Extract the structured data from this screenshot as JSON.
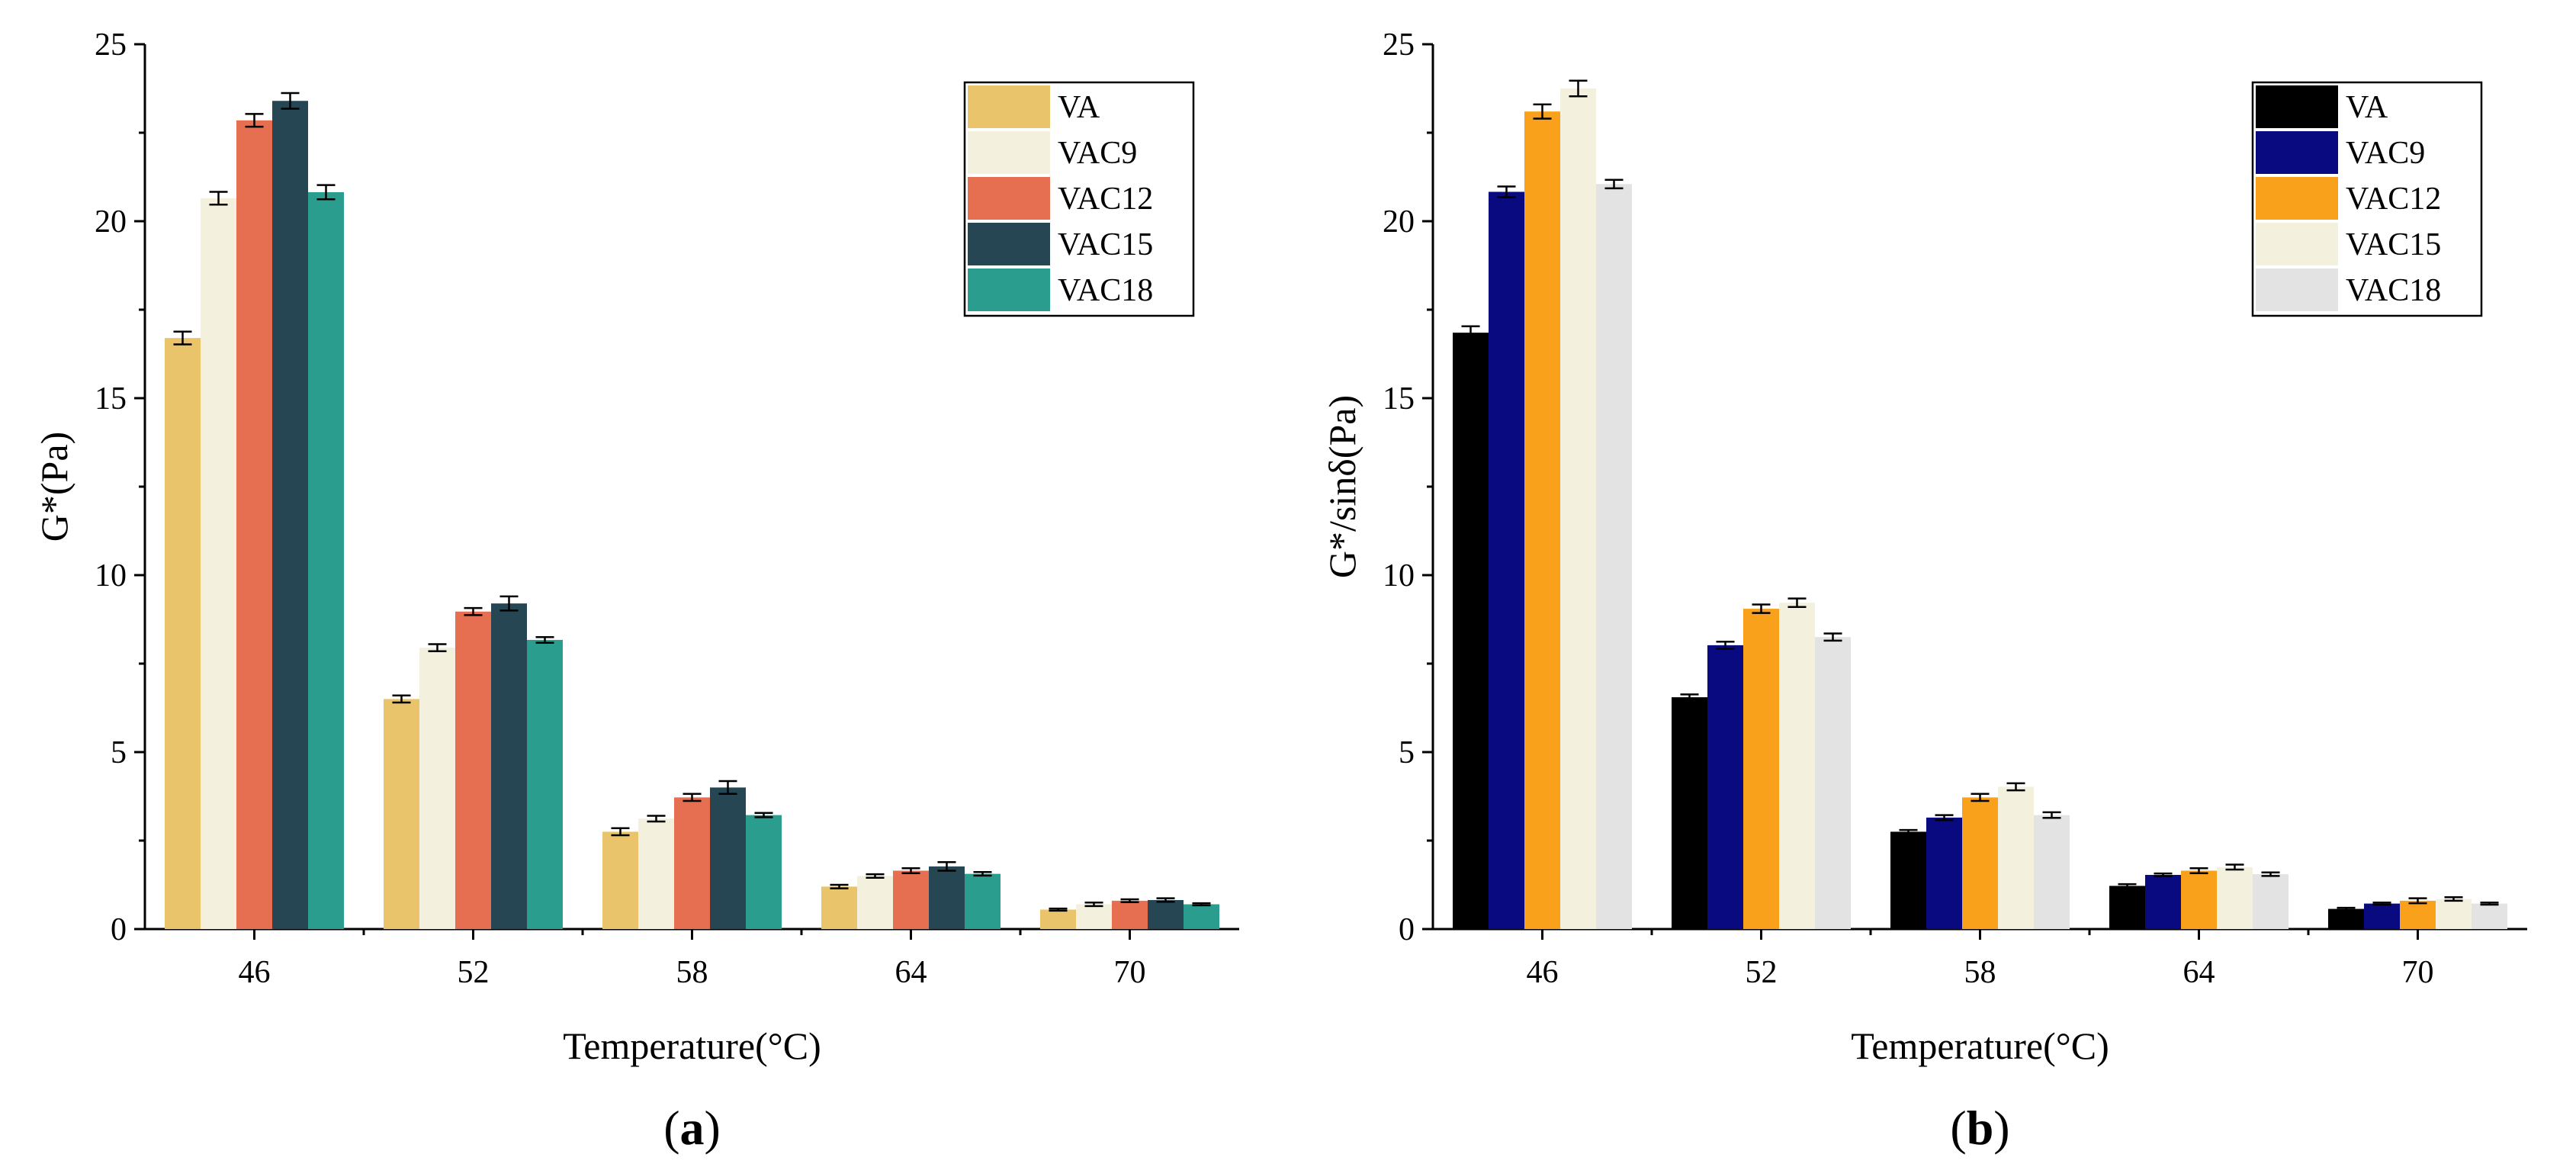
{
  "chart_data": [
    {
      "type": "bar",
      "panel_label": "a",
      "xlabel": "Temperature(°C)",
      "ylabel": "G*(Pa)",
      "ylim": [
        0,
        25
      ],
      "yticks": [
        "0",
        "5",
        "10",
        "15",
        "20",
        "25"
      ],
      "categories": [
        "46",
        "52",
        "58",
        "64",
        "70"
      ],
      "legend_position": "top-right",
      "grid": false,
      "series": [
        {
          "name": "VA",
          "color": "#E9C46A",
          "values": [
            16.7,
            6.5,
            2.75,
            1.2,
            0.55
          ],
          "errors": [
            0.18,
            0.1,
            0.1,
            0.05,
            0.03
          ]
        },
        {
          "name": "VAC9",
          "color": "#F3F0DE",
          "values": [
            20.65,
            7.95,
            3.12,
            1.5,
            0.7
          ],
          "errors": [
            0.18,
            0.1,
            0.08,
            0.05,
            0.05
          ]
        },
        {
          "name": "VAC12",
          "color": "#E76F51",
          "values": [
            22.85,
            8.97,
            3.72,
            1.65,
            0.8
          ],
          "errors": [
            0.18,
            0.1,
            0.1,
            0.07,
            0.04
          ]
        },
        {
          "name": "VAC15",
          "color": "#264653",
          "values": [
            23.4,
            9.2,
            4.0,
            1.77,
            0.82
          ],
          "errors": [
            0.22,
            0.2,
            0.18,
            0.12,
            0.05
          ]
        },
        {
          "name": "VAC18",
          "color": "#2A9D8F",
          "values": [
            20.82,
            8.17,
            3.22,
            1.56,
            0.7
          ],
          "errors": [
            0.2,
            0.08,
            0.06,
            0.05,
            0.03
          ]
        }
      ]
    },
    {
      "type": "bar",
      "panel_label": "b",
      "xlabel": "Temperature(°C)",
      "ylabel": "G*/sinδ(Pa)",
      "ylim": [
        0,
        25
      ],
      "yticks": [
        "0",
        "5",
        "10",
        "15",
        "20",
        "25"
      ],
      "categories": [
        "46",
        "52",
        "58",
        "64",
        "70"
      ],
      "legend_position": "top-right",
      "grid": false,
      "series": [
        {
          "name": "VA",
          "color": "#000000",
          "values": [
            16.85,
            6.55,
            2.75,
            1.22,
            0.57
          ],
          "errors": [
            0.18,
            0.08,
            0.05,
            0.05,
            0.03
          ]
        },
        {
          "name": "VAC9",
          "color": "#0A0A80",
          "values": [
            20.83,
            8.02,
            3.15,
            1.53,
            0.72
          ],
          "errors": [
            0.15,
            0.1,
            0.07,
            0.04,
            0.03
          ]
        },
        {
          "name": "VAC12",
          "color": "#F9A11B",
          "values": [
            23.1,
            9.05,
            3.72,
            1.65,
            0.8
          ],
          "errors": [
            0.2,
            0.12,
            0.1,
            0.07,
            0.07
          ]
        },
        {
          "name": "VAC15",
          "color": "#F3F0DE",
          "values": [
            23.75,
            9.22,
            4.02,
            1.75,
            0.85
          ],
          "errors": [
            0.22,
            0.12,
            0.1,
            0.07,
            0.05
          ]
        },
        {
          "name": "VAC18",
          "color": "#E3E3E3",
          "values": [
            21.05,
            8.25,
            3.22,
            1.55,
            0.72
          ],
          "errors": [
            0.12,
            0.1,
            0.08,
            0.05,
            0.03
          ]
        }
      ]
    }
  ]
}
